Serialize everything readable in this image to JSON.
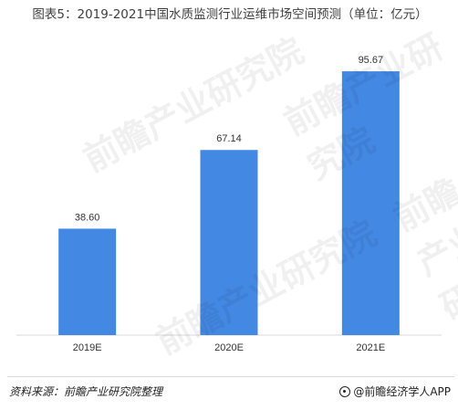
{
  "title": "图表5：2019-2021中国水质监测行业运维市场空间预测（单位：亿元）",
  "watermark_text": "前瞻产业研究院",
  "footer": {
    "source": "资料来源：前瞻产业研究院整理",
    "brand": "@前瞻经济学人APP"
  },
  "colors": {
    "bar": "#4389E4",
    "axis": "#d9d9d9"
  },
  "chart_data": {
    "type": "bar",
    "categories": [
      "2019E",
      "2020E",
      "2021E"
    ],
    "values": [
      38.6,
      67.14,
      95.67
    ],
    "value_labels": [
      "38.60",
      "67.14",
      "95.67"
    ],
    "title": "图表5：2019-2021中国水质监测行业运维市场空间预测（单位：亿元）",
    "xlabel": "",
    "ylabel": "",
    "ylim": [
      0,
      100
    ],
    "grid": false,
    "legend": "none"
  }
}
